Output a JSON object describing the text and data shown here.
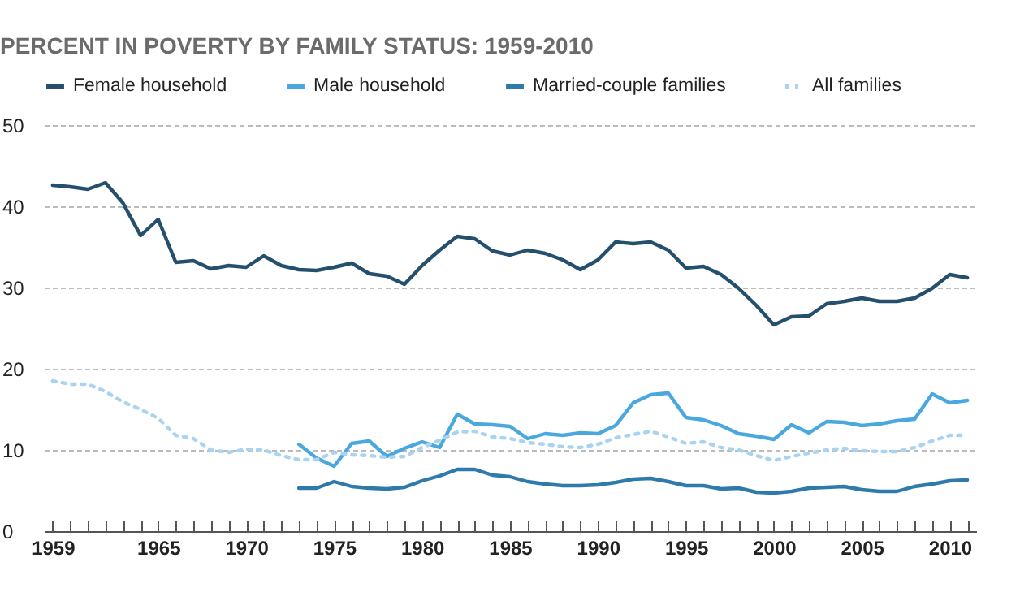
{
  "chart_data": {
    "type": "line",
    "title": "PERCENT IN POVERTY BY FAMILY STATUS: 1959-2010",
    "legend": "top",
    "grid": "y",
    "xlim": [
      1958.5,
      2011.5
    ],
    "xticks": [
      1959,
      {
        "value": 1960,
        "label": null
      },
      {
        "value": 1961,
        "label": null
      },
      {
        "value": 1962,
        "label": null
      },
      {
        "value": 1963,
        "label": null
      },
      {
        "value": 1964,
        "label": null
      },
      1965,
      {
        "value": 1966,
        "label": null
      },
      {
        "value": 1967,
        "label": null
      },
      {
        "value": 1968,
        "label": null
      },
      {
        "value": 1969,
        "label": null
      },
      1970,
      {
        "value": 1971,
        "label": null
      },
      {
        "value": 1972,
        "label": null
      },
      {
        "value": 1973,
        "label": null
      },
      {
        "value": 1974,
        "label": null
      },
      1975,
      {
        "value": 1976,
        "label": null
      },
      {
        "value": 1977,
        "label": null
      },
      {
        "value": 1978,
        "label": null
      },
      {
        "value": 1979,
        "label": null
      },
      1980,
      {
        "value": 1981,
        "label": null
      },
      {
        "value": 1982,
        "label": null
      },
      {
        "value": 1983,
        "label": null
      },
      {
        "value": 1984,
        "label": null
      },
      1985,
      {
        "value": 1986,
        "label": null
      },
      {
        "value": 1987,
        "label": null
      },
      {
        "value": 1988,
        "label": null
      },
      {
        "value": 1989,
        "label": null
      },
      1990,
      {
        "value": 1991,
        "label": null
      },
      {
        "value": 1992,
        "label": null
      },
      {
        "value": 1993,
        "label": null
      },
      {
        "value": 1994,
        "label": null
      },
      1995,
      {
        "value": 1996,
        "label": null
      },
      {
        "value": 1997,
        "label": null
      },
      {
        "value": 1998,
        "label": null
      },
      {
        "value": 1999,
        "label": null
      },
      2000,
      {
        "value": 2001,
        "label": null
      },
      {
        "value": 2002,
        "label": null
      },
      {
        "value": 2003,
        "label": null
      },
      {
        "value": 2004,
        "label": null
      },
      2005,
      {
        "value": 2006,
        "label": null
      },
      {
        "value": 2007,
        "label": null
      },
      {
        "value": 2008,
        "label": null
      },
      {
        "value": 2009,
        "label": null
      },
      2010,
      {
        "value": 2011,
        "label": null
      }
    ],
    "ylim": [
      0,
      50
    ],
    "yticks": [
      0,
      10,
      20,
      30,
      40,
      50
    ],
    "series": [
      {
        "name": "Female household",
        "color": "#24506e",
        "line_style": "solid",
        "x": [
          1959,
          1960,
          1961,
          1962,
          1963,
          1964,
          1965,
          1966,
          1967,
          1968,
          1969,
          1970,
          1971,
          1972,
          1973,
          1974,
          1975,
          1976,
          1977,
          1978,
          1979,
          1980,
          1981,
          1982,
          1983,
          1984,
          1985,
          1986,
          1987,
          1988,
          1989,
          1990,
          1991,
          1992,
          1993,
          1994,
          1995,
          1996,
          1997,
          1998,
          1999,
          2000,
          2001,
          2002,
          2003,
          2004,
          2005,
          2006,
          2007,
          2008,
          2009,
          2010,
          2011
        ],
        "values": [
          42.6,
          42.4,
          42.1,
          42.9,
          40.4,
          36.4,
          38.4,
          33.1,
          33.3,
          32.3,
          32.7,
          32.5,
          33.9,
          32.7,
          32.2,
          32.1,
          32.5,
          33.0,
          31.7,
          31.4,
          30.4,
          32.7,
          34.6,
          36.3,
          36.0,
          34.5,
          34.0,
          34.6,
          34.2,
          33.4,
          32.2,
          33.4,
          35.6,
          35.4,
          35.6,
          34.6,
          32.4,
          32.6,
          31.6,
          29.9,
          27.8,
          25.4,
          26.4,
          26.5,
          28.0,
          28.3,
          28.7,
          28.3,
          28.3,
          28.7,
          29.9,
          31.6,
          31.2
        ]
      },
      {
        "name": "Male household",
        "color": "#4aa8df",
        "line_style": "solid",
        "x": [
          1973,
          1974,
          1975,
          1976,
          1977,
          1978,
          1979,
          1980,
          1981,
          1982,
          1983,
          1984,
          1985,
          1986,
          1987,
          1988,
          1989,
          1990,
          1991,
          1992,
          1993,
          1994,
          1995,
          1996,
          1997,
          1998,
          1999,
          2000,
          2001,
          2002,
          2003,
          2004,
          2005,
          2006,
          2007,
          2008,
          2009,
          2010,
          2011
        ],
        "values": [
          10.7,
          9.0,
          8.0,
          10.8,
          11.1,
          9.2,
          10.2,
          11.0,
          10.3,
          14.4,
          13.2,
          13.1,
          12.9,
          11.4,
          12.0,
          11.8,
          12.1,
          12.0,
          13.0,
          15.8,
          16.8,
          17.0,
          14.0,
          13.7,
          13.0,
          12.0,
          11.7,
          11.3,
          13.1,
          12.1,
          13.5,
          13.4,
          13.0,
          13.2,
          13.6,
          13.8,
          16.9,
          15.8,
          16.1
        ]
      },
      {
        "name": "Married-couple families",
        "color": "#2e7aab",
        "line_style": "solid",
        "x": [
          1973,
          1974,
          1975,
          1976,
          1977,
          1978,
          1979,
          1980,
          1981,
          1982,
          1983,
          1984,
          1985,
          1986,
          1987,
          1988,
          1989,
          1990,
          1991,
          1992,
          1993,
          1994,
          1995,
          1996,
          1997,
          1998,
          1999,
          2000,
          2001,
          2002,
          2003,
          2004,
          2005,
          2006,
          2007,
          2008,
          2009,
          2010,
          2011
        ],
        "values": [
          5.3,
          5.3,
          6.1,
          5.5,
          5.3,
          5.2,
          5.4,
          6.2,
          6.8,
          7.6,
          7.6,
          6.9,
          6.7,
          6.1,
          5.8,
          5.6,
          5.6,
          5.7,
          6.0,
          6.4,
          6.5,
          6.1,
          5.6,
          5.6,
          5.2,
          5.3,
          4.8,
          4.7,
          4.9,
          5.3,
          5.4,
          5.5,
          5.1,
          4.9,
          4.9,
          5.5,
          5.8,
          6.2,
          6.3
        ]
      },
      {
        "name": "All families",
        "color": "#a9d4f0",
        "line_style": "dotted",
        "x": [
          1959,
          1960,
          1961,
          1962,
          1963,
          1964,
          1965,
          1966,
          1967,
          1968,
          1969,
          1970,
          1971,
          1972,
          1973,
          1974,
          1975,
          1976,
          1977,
          1978,
          1979,
          1980,
          1981,
          1982,
          1983,
          1984,
          1985,
          1986,
          1987,
          1988,
          1989,
          1990,
          1991,
          1992,
          1993,
          1994,
          1995,
          1996,
          1997,
          1998,
          1999,
          2000,
          2001,
          2002,
          2003,
          2004,
          2005,
          2006,
          2007,
          2008,
          2009,
          2010,
          2011
        ],
        "values": [
          18.5,
          18.1,
          18.1,
          17.2,
          15.9,
          15.0,
          13.9,
          11.8,
          11.4,
          10.0,
          9.7,
          10.1,
          10.0,
          9.3,
          8.8,
          8.8,
          9.7,
          9.4,
          9.3,
          9.1,
          9.2,
          10.3,
          11.2,
          12.2,
          12.3,
          11.6,
          11.4,
          10.9,
          10.7,
          10.4,
          10.3,
          10.7,
          11.5,
          11.9,
          12.3,
          11.6,
          10.8,
          11.0,
          10.3,
          10.0,
          9.3,
          8.7,
          9.2,
          9.6,
          10.0,
          10.2,
          9.9,
          9.8,
          9.8,
          10.3,
          11.1,
          11.8,
          11.8
        ]
      }
    ]
  }
}
